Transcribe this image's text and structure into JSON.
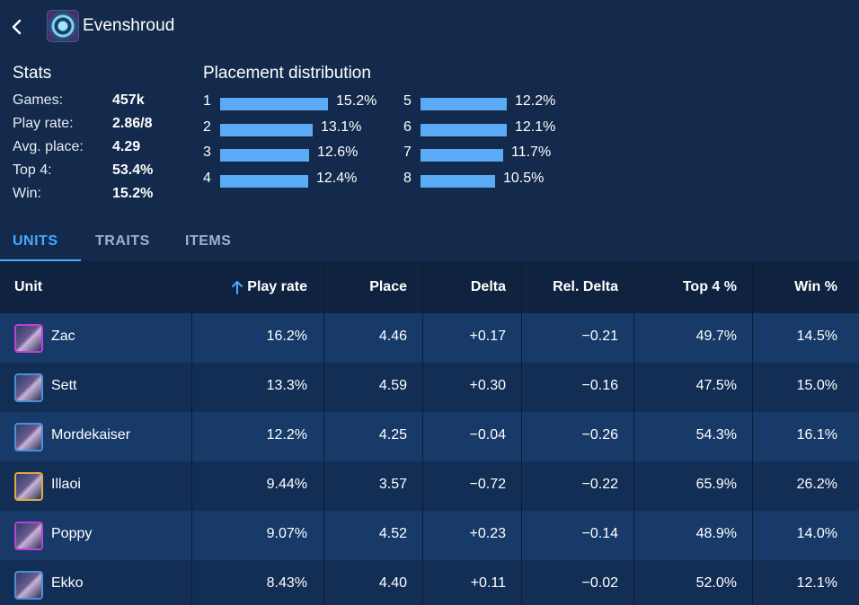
{
  "header": {
    "title": "Evenshroud",
    "back_icon": "chevron-left-icon",
    "item_icon": "evenshroud-icon"
  },
  "stats": {
    "title": "Stats",
    "rows": [
      {
        "label": "Games:",
        "value": "457k"
      },
      {
        "label": "Play rate:",
        "value": "2.86/8"
      },
      {
        "label": "Avg. place:",
        "value": "4.29"
      },
      {
        "label": "Top 4:",
        "value": "53.4%"
      },
      {
        "label": "Win:",
        "value": "15.2%"
      }
    ]
  },
  "distribution": {
    "title": "Placement distribution",
    "bar_color": "#5aaaf6",
    "items": [
      {
        "place": "1",
        "pct": "15.2%",
        "value": 15.2
      },
      {
        "place": "2",
        "pct": "13.1%",
        "value": 13.1
      },
      {
        "place": "3",
        "pct": "12.6%",
        "value": 12.6
      },
      {
        "place": "4",
        "pct": "12.4%",
        "value": 12.4
      },
      {
        "place": "5",
        "pct": "12.2%",
        "value": 12.2
      },
      {
        "place": "6",
        "pct": "12.1%",
        "value": 12.1
      },
      {
        "place": "7",
        "pct": "11.7%",
        "value": 11.7
      },
      {
        "place": "8",
        "pct": "10.5%",
        "value": 10.5
      }
    ]
  },
  "tabs": [
    {
      "label": "UNITS",
      "active": true
    },
    {
      "label": "TRAITS",
      "active": false
    },
    {
      "label": "ITEMS",
      "active": false
    }
  ],
  "table": {
    "sort_icon": "arrow-up-icon",
    "columns": [
      "Unit",
      "Play rate",
      "Place",
      "Delta",
      "Rel. Delta",
      "Top 4 %",
      "Win %"
    ],
    "rows": [
      {
        "unit": "Zac",
        "frame_color": "#c03fd6",
        "play_rate": "16.2%",
        "place": "4.46",
        "delta": "+0.17",
        "rel_delta": "−0.21",
        "top4": "49.7%",
        "win": "14.5%"
      },
      {
        "unit": "Sett",
        "frame_color": "#4a8fd8",
        "play_rate": "13.3%",
        "place": "4.59",
        "delta": "+0.30",
        "rel_delta": "−0.16",
        "top4": "47.5%",
        "win": "15.0%"
      },
      {
        "unit": "Mordekaiser",
        "frame_color": "#4a8fd8",
        "play_rate": "12.2%",
        "place": "4.25",
        "delta": "−0.04",
        "rel_delta": "−0.26",
        "top4": "54.3%",
        "win": "16.1%"
      },
      {
        "unit": "Illaoi",
        "frame_color": "#e2a93a",
        "play_rate": "9.44%",
        "place": "3.57",
        "delta": "−0.72",
        "rel_delta": "−0.22",
        "top4": "65.9%",
        "win": "26.2%"
      },
      {
        "unit": "Poppy",
        "frame_color": "#c03fd6",
        "play_rate": "9.07%",
        "place": "4.52",
        "delta": "+0.23",
        "rel_delta": "−0.14",
        "top4": "48.9%",
        "win": "14.0%"
      },
      {
        "unit": "Ekko",
        "frame_color": "#4a8fd8",
        "play_rate": "8.43%",
        "place": "4.40",
        "delta": "+0.11",
        "rel_delta": "−0.02",
        "top4": "52.0%",
        "win": "12.1%"
      }
    ]
  }
}
